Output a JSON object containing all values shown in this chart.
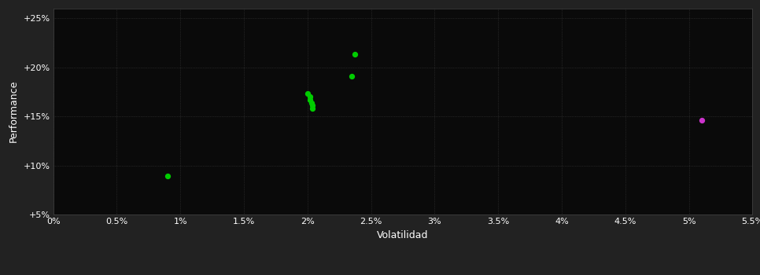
{
  "background_color": "#222222",
  "plot_bg_color": "#0a0a0a",
  "grid_color": "#3a3a3a",
  "text_color": "#ffffff",
  "xlabel": "Volatilidad",
  "ylabel": "Performance",
  "xlim": [
    0.0,
    0.055
  ],
  "ylim": [
    0.05,
    0.26
  ],
  "xticks": [
    0.0,
    0.005,
    0.01,
    0.015,
    0.02,
    0.025,
    0.03,
    0.035,
    0.04,
    0.045,
    0.05,
    0.055
  ],
  "xtick_labels": [
    "0%",
    "0.5%",
    "1%",
    "1.5%",
    "2%",
    "2.5%",
    "3%",
    "3.5%",
    "4%",
    "4.5%",
    "5%",
    "5.5%"
  ],
  "yticks": [
    0.05,
    0.1,
    0.15,
    0.2,
    0.25
  ],
  "ytick_labels": [
    "+5%",
    "+10%",
    "+15%",
    "+20%",
    "+25%"
  ],
  "green_points": [
    [
      0.009,
      0.089
    ],
    [
      0.02,
      0.173
    ],
    [
      0.0202,
      0.17
    ],
    [
      0.0202,
      0.167
    ],
    [
      0.0203,
      0.164
    ],
    [
      0.0204,
      0.161
    ],
    [
      0.0204,
      0.158
    ],
    [
      0.0235,
      0.191
    ],
    [
      0.0237,
      0.213
    ]
  ],
  "magenta_points": [
    [
      0.051,
      0.146
    ]
  ],
  "green_color": "#00cc00",
  "magenta_color": "#cc33cc",
  "point_size": 18,
  "marker": "o"
}
